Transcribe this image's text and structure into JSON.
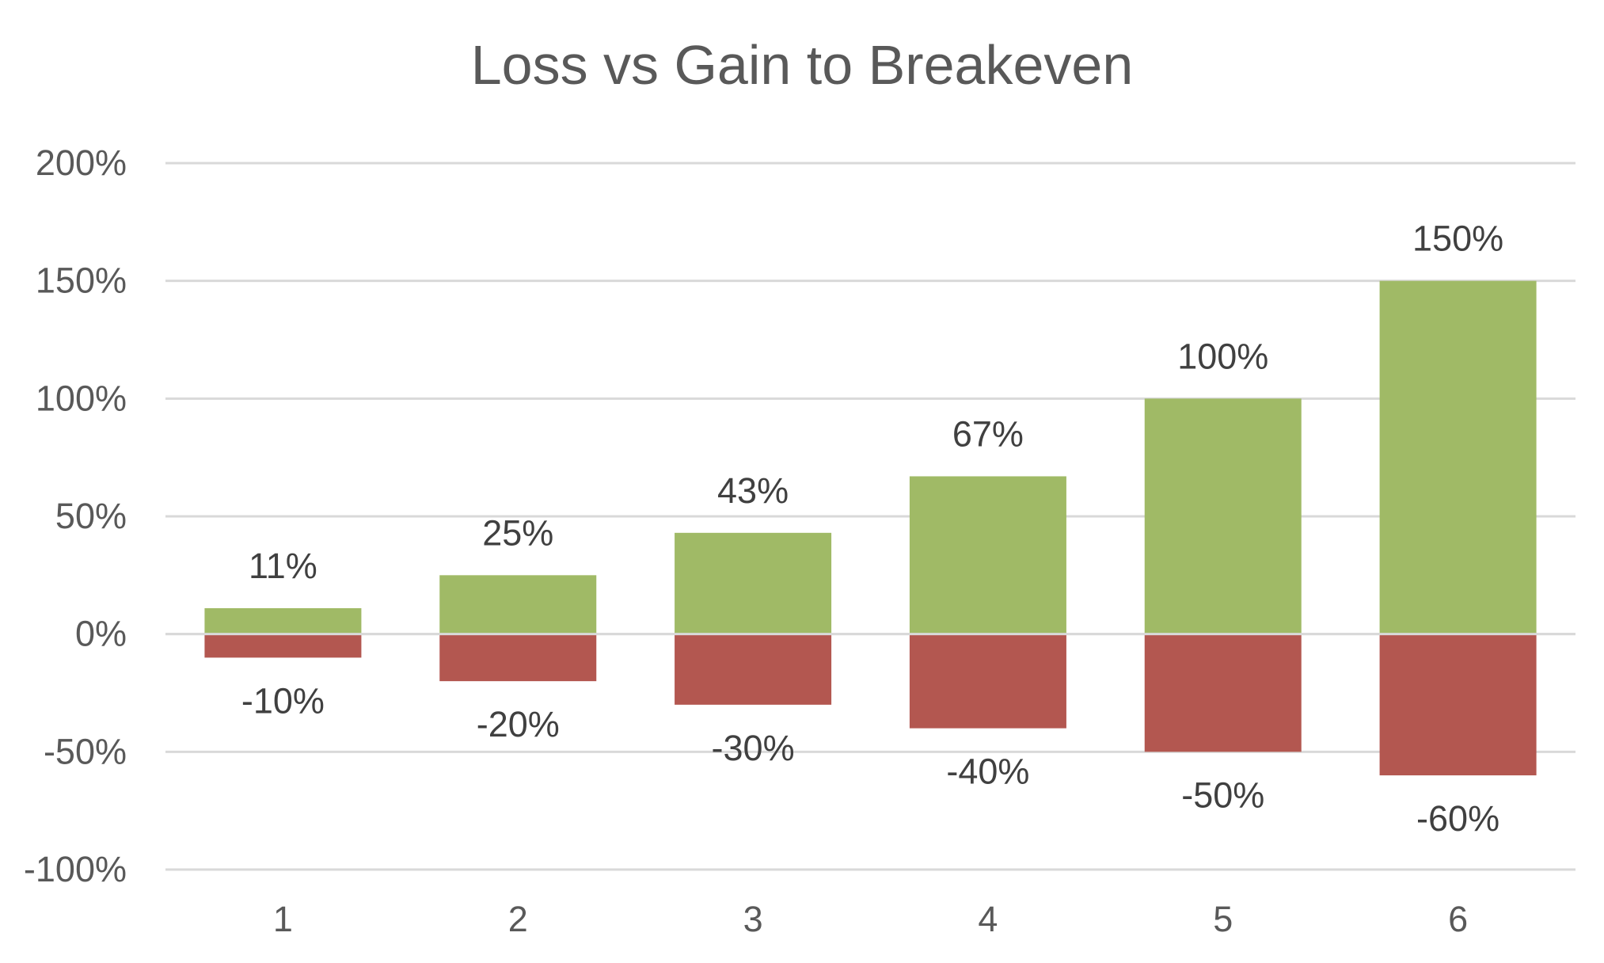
{
  "chart_data": {
    "type": "bar",
    "title": "Loss vs Gain to Breakeven",
    "xlabel": "",
    "ylabel": "",
    "categories": [
      "1",
      "2",
      "3",
      "4",
      "5",
      "6"
    ],
    "series": [
      {
        "values": [
          11,
          25,
          43,
          67,
          100,
          150
        ],
        "labels": [
          "11%",
          "25%",
          "43%",
          "67%",
          "100%",
          "150%"
        ],
        "color": "#A0BA66"
      },
      {
        "values": [
          -10,
          -20,
          -30,
          -40,
          -50,
          -60
        ],
        "labels": [
          "-10%",
          "-20%",
          "-30%",
          "-40%",
          "-50%",
          "-60%"
        ],
        "color": "#B35750"
      }
    ],
    "ylim": [
      -100,
      200
    ],
    "yticks": [
      200,
      150,
      100,
      50,
      0,
      -50,
      -100
    ],
    "ytick_labels": [
      "200%",
      "150%",
      "100%",
      "50%",
      "0%",
      "-50%",
      "-100%"
    ],
    "grid": true,
    "grid_color": "#D9D9D9",
    "legend": "none"
  }
}
